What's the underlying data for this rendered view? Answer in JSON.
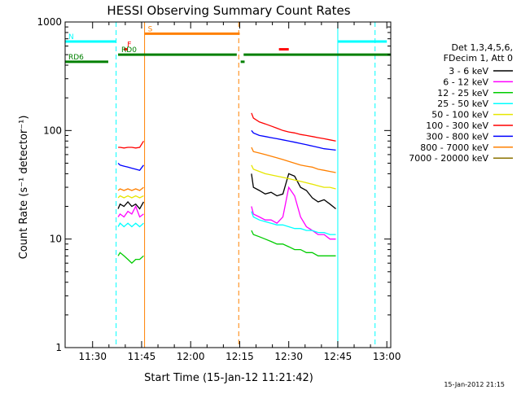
{
  "chart_data": {
    "type": "line",
    "title": "HESSI Observing Summary Count Rates",
    "xlabel": "Start Time (15-Jan-12 11:21:42)",
    "ylabel": "Count Rate (s⁻¹ detector⁻¹)",
    "yscale": "log",
    "ylim": [
      1,
      1000
    ],
    "xlim_minutes": [
      11.36,
      13.02
    ],
    "x_ticks": [
      {
        "label": "11:30",
        "t": 11.5
      },
      {
        "label": "11:45",
        "t": 11.75
      },
      {
        "label": "12:00",
        "t": 12.0
      },
      {
        "label": "12:15",
        "t": 12.25
      },
      {
        "label": "12:30",
        "t": 12.5
      },
      {
        "label": "12:45",
        "t": 12.75
      },
      {
        "label": "13:00",
        "t": 13.0
      }
    ],
    "y_ticks": [
      {
        "label": "1",
        "v": 1
      },
      {
        "label": "10",
        "v": 10
      },
      {
        "label": "100",
        "v": 100
      },
      {
        "label": "1000",
        "v": 1000
      }
    ],
    "legend": {
      "header": [
        "Det 1,3,4,5,6,",
        "FDecim 1, Att 0"
      ],
      "placement": "right"
    },
    "series": [
      {
        "name": "3 - 6 keV",
        "color": "#000000",
        "seg1": {
          "t": [
            11.63,
            11.64,
            11.66,
            11.68,
            11.7,
            11.72,
            11.74,
            11.76
          ],
          "v": [
            19,
            21,
            20,
            22,
            20,
            21,
            19,
            22
          ]
        },
        "seg2": {
          "t": [
            12.31,
            12.32,
            12.35,
            12.38,
            12.41,
            12.44,
            12.47,
            12.5,
            12.53,
            12.56,
            12.59,
            12.62,
            12.65,
            12.68,
            12.71,
            12.74
          ],
          "v": [
            40,
            30,
            28,
            26,
            27,
            25,
            26,
            40,
            38,
            30,
            28,
            24,
            22,
            23,
            21,
            19
          ]
        }
      },
      {
        "name": "6 - 12 keV",
        "color": "#ff00ff",
        "seg1": {
          "t": [
            11.63,
            11.64,
            11.66,
            11.68,
            11.7,
            11.72,
            11.74,
            11.76
          ],
          "v": [
            16,
            17,
            16,
            18,
            17,
            20,
            16,
            17
          ]
        },
        "seg2": {
          "t": [
            12.31,
            12.32,
            12.35,
            12.38,
            12.41,
            12.44,
            12.47,
            12.5,
            12.53,
            12.56,
            12.59,
            12.62,
            12.65,
            12.68,
            12.71,
            12.74
          ],
          "v": [
            20,
            17,
            16,
            15,
            15,
            14,
            16,
            30,
            25,
            16,
            13,
            12,
            11,
            11,
            10,
            10
          ]
        }
      },
      {
        "name": "12 - 25 keV",
        "color": "#00cc00",
        "seg1": {
          "t": [
            11.63,
            11.64,
            11.66,
            11.68,
            11.7,
            11.72,
            11.74,
            11.76
          ],
          "v": [
            7,
            7.5,
            7,
            6.5,
            6,
            6.5,
            6.5,
            7
          ]
        },
        "seg2": {
          "t": [
            12.31,
            12.32,
            12.35,
            12.38,
            12.41,
            12.44,
            12.47,
            12.5,
            12.53,
            12.56,
            12.59,
            12.62,
            12.65,
            12.68,
            12.71,
            12.74
          ],
          "v": [
            12,
            11,
            10.5,
            10,
            9.5,
            9,
            9,
            8.5,
            8,
            8,
            7.5,
            7.5,
            7,
            7,
            7,
            7
          ]
        }
      },
      {
        "name": "25 - 50 keV",
        "color": "#00ffff",
        "seg1": {
          "t": [
            11.63,
            11.64,
            11.66,
            11.68,
            11.7,
            11.72,
            11.74,
            11.76
          ],
          "v": [
            13,
            14,
            13,
            14,
            13,
            14,
            13,
            14
          ]
        },
        "seg2": {
          "t": [
            12.31,
            12.32,
            12.35,
            12.38,
            12.41,
            12.44,
            12.47,
            12.5,
            12.53,
            12.56,
            12.59,
            12.62,
            12.65,
            12.68,
            12.71,
            12.74
          ],
          "v": [
            18,
            16,
            15,
            14.5,
            14,
            13.5,
            13.5,
            13,
            12.5,
            12.5,
            12,
            12,
            11.5,
            11.5,
            11,
            11
          ]
        }
      },
      {
        "name": "50 - 100 keV",
        "color": "#e6e600",
        "seg1": {
          "t": [
            11.63,
            11.64,
            11.66,
            11.68,
            11.7,
            11.72,
            11.74,
            11.76
          ],
          "v": [
            24,
            25,
            24,
            25,
            24,
            25,
            24,
            25
          ]
        },
        "seg2": {
          "t": [
            12.31,
            12.32,
            12.35,
            12.38,
            12.41,
            12.44,
            12.47,
            12.5,
            12.53,
            12.56,
            12.59,
            12.62,
            12.65,
            12.68,
            12.71,
            12.74
          ],
          "v": [
            48,
            44,
            42,
            40,
            39,
            38,
            37,
            36,
            35,
            34,
            33,
            32,
            31,
            30,
            30,
            29
          ]
        }
      },
      {
        "name": "100 - 300 keV",
        "color": "#ff0000",
        "seg1": {
          "t": [
            11.63,
            11.64,
            11.66,
            11.68,
            11.7,
            11.72,
            11.74,
            11.76
          ],
          "v": [
            70,
            70,
            69,
            70,
            70,
            69,
            70,
            80
          ]
        },
        "seg2": {
          "t": [
            12.31,
            12.32,
            12.35,
            12.38,
            12.41,
            12.44,
            12.47,
            12.5,
            12.53,
            12.56,
            12.59,
            12.62,
            12.65,
            12.68,
            12.71,
            12.74
          ],
          "v": [
            145,
            130,
            120,
            115,
            110,
            105,
            100,
            97,
            95,
            92,
            90,
            88,
            86,
            84,
            82,
            80
          ]
        }
      },
      {
        "name": "300 - 800 keV",
        "color": "#0000ff",
        "seg1": {
          "t": [
            11.63,
            11.64,
            11.66,
            11.68,
            11.7,
            11.72,
            11.74,
            11.76
          ],
          "v": [
            50,
            48,
            47,
            46,
            45,
            44,
            43,
            48
          ]
        },
        "seg2": {
          "t": [
            12.31,
            12.32,
            12.35,
            12.38,
            12.41,
            12.44,
            12.47,
            12.5,
            12.53,
            12.56,
            12.59,
            12.62,
            12.65,
            12.68,
            12.71,
            12.74
          ],
          "v": [
            100,
            95,
            90,
            88,
            86,
            84,
            82,
            80,
            78,
            76,
            74,
            72,
            70,
            68,
            67,
            66
          ]
        }
      },
      {
        "name": "800 - 7000 keV",
        "color": "#ff8000",
        "seg1": {
          "t": [
            11.63,
            11.64,
            11.66,
            11.68,
            11.7,
            11.72,
            11.74,
            11.76
          ],
          "v": [
            28,
            29,
            28,
            29,
            28,
            29,
            28,
            30
          ]
        },
        "seg2": {
          "t": [
            12.31,
            12.32,
            12.35,
            12.38,
            12.41,
            12.44,
            12.47,
            12.5,
            12.53,
            12.56,
            12.59,
            12.62,
            12.65,
            12.68,
            12.71,
            12.74
          ],
          "v": [
            70,
            64,
            62,
            60,
            58,
            56,
            54,
            52,
            50,
            48,
            47,
            46,
            44,
            43,
            42,
            41
          ]
        }
      },
      {
        "name": "7000 - 20000 keV",
        "color": "#8b7300",
        "seg1": null,
        "seg2": null
      }
    ],
    "flag_bars": [
      {
        "label": "N",
        "color": "#00ffff",
        "spans": [
          [
            11.36,
            11.62
          ],
          [
            12.75,
            13.0
          ]
        ],
        "v": 660
      },
      {
        "label": "S",
        "color": "#ff8000",
        "spans": [
          [
            11.765,
            12.25
          ]
        ],
        "v": 780
      },
      {
        "label": "F",
        "color": "#ff0000",
        "spans": [
          [
            11.66,
            11.68
          ],
          [
            12.45,
            12.5
          ]
        ],
        "v": 560
      },
      {
        "label": "RD0",
        "color": "#008000",
        "spans": [
          [
            11.63,
            12.235
          ],
          [
            12.27,
            13.02
          ]
        ],
        "v": 500
      },
      {
        "label": "RD6",
        "color": "#008000",
        "spans": [
          [
            11.36,
            11.58
          ],
          [
            12.255,
            12.275
          ]
        ],
        "v": 430
      }
    ],
    "vlines": [
      {
        "t": 11.36,
        "color": "#00ffff",
        "style": "solid"
      },
      {
        "t": 11.62,
        "color": "#00ffff",
        "style": "dashed"
      },
      {
        "t": 11.765,
        "color": "#ff8000",
        "style": "solid"
      },
      {
        "t": 12.245,
        "color": "#ff8000",
        "style": "dashed"
      },
      {
        "t": 12.75,
        "color": "#00ffff",
        "style": "solid"
      },
      {
        "t": 12.94,
        "color": "#00ffff",
        "style": "dashed"
      }
    ]
  },
  "footer_date": "15-Jan-2012 21:15"
}
